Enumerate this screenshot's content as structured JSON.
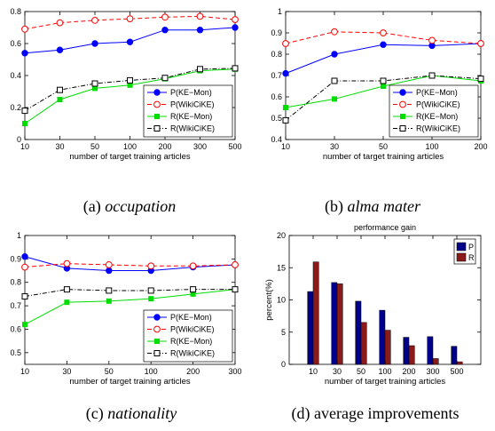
{
  "captions": [
    {
      "label": "(a)",
      "name": "occupation",
      "italic": true
    },
    {
      "label": "(b)",
      "name": "alma mater",
      "italic": true
    },
    {
      "label": "(c)",
      "name": "nationality",
      "italic": true
    },
    {
      "label": "(d)",
      "name": "average improvements",
      "italic": false
    }
  ],
  "colors": {
    "ke_mon_p": "#0000ff",
    "wikicike_p": "#ff0000",
    "ke_mon_r": "#00dd00",
    "wikicike_r": "#000000",
    "bar_p": "#00008b",
    "bar_r": "#8b1a1a"
  },
  "chart_data": [
    {
      "type": "line",
      "xlabel": "number of target training articles",
      "x": [
        "10",
        "30",
        "50",
        "100",
        "200",
        "300",
        "500"
      ],
      "ylim": [
        0,
        0.8
      ],
      "yticks": [
        "0",
        "0.2",
        "0.4",
        "0.6",
        "0.8"
      ],
      "legend": "bottom-right",
      "series": [
        {
          "name": "P(KE−Mon)",
          "values": [
            0.54,
            0.56,
            0.6,
            0.61,
            0.685,
            0.685,
            0.7
          ]
        },
        {
          "name": "P(WikiCiKE)",
          "values": [
            0.69,
            0.73,
            0.745,
            0.755,
            0.765,
            0.77,
            0.75
          ]
        },
        {
          "name": "R(KE−Mon)",
          "values": [
            0.1,
            0.25,
            0.32,
            0.34,
            0.38,
            0.43,
            0.44
          ]
        },
        {
          "name": "R(WikiCiKE)",
          "values": [
            0.18,
            0.31,
            0.35,
            0.37,
            0.385,
            0.44,
            0.445
          ]
        }
      ]
    },
    {
      "type": "line",
      "xlabel": "number of target training articles",
      "x": [
        "10",
        "30",
        "50",
        "100",
        "200"
      ],
      "ylim": [
        0.4,
        1
      ],
      "yticks": [
        "0.4",
        "0.5",
        "0.6",
        "0.7",
        "0.8",
        "0.9",
        "1"
      ],
      "legend": "bottom-right",
      "series": [
        {
          "name": "P(KE−Mon)",
          "values": [
            0.71,
            0.8,
            0.845,
            0.84,
            0.85
          ]
        },
        {
          "name": "P(WikiCiKE)",
          "values": [
            0.85,
            0.905,
            0.9,
            0.865,
            0.85
          ]
        },
        {
          "name": "R(KE−Mon)",
          "values": [
            0.55,
            0.59,
            0.65,
            0.7,
            0.675
          ]
        },
        {
          "name": "R(WikiCiKE)",
          "values": [
            0.49,
            0.675,
            0.675,
            0.7,
            0.685
          ]
        }
      ]
    },
    {
      "type": "line",
      "xlabel": "number of target training articles",
      "x": [
        "10",
        "30",
        "50",
        "100",
        "200",
        "300"
      ],
      "ylim": [
        0.45,
        1
      ],
      "yticks": [
        "0.5",
        "0.6",
        "0.7",
        "0.8",
        "0.9",
        "1"
      ],
      "legend": "bottom-right",
      "series": [
        {
          "name": "P(KE−Mon)",
          "values": [
            0.91,
            0.86,
            0.85,
            0.85,
            0.865,
            0.875
          ]
        },
        {
          "name": "P(WikiCiKE)",
          "values": [
            0.865,
            0.88,
            0.875,
            0.87,
            0.87,
            0.875
          ]
        },
        {
          "name": "R(KE−Mon)",
          "values": [
            0.62,
            0.715,
            0.72,
            0.73,
            0.75,
            0.77
          ]
        },
        {
          "name": "R(WikiCiKE)",
          "values": [
            0.74,
            0.77,
            0.765,
            0.765,
            0.77,
            0.77
          ]
        }
      ]
    },
    {
      "type": "bar",
      "title": "performance gain",
      "xlabel": "number of target training articles",
      "ylabel": "percent(%)",
      "categories": [
        "10",
        "30",
        "50",
        "100",
        "200",
        "300",
        "500"
      ],
      "ylim": [
        0,
        20
      ],
      "yticks": [
        "0",
        "5",
        "10",
        "15",
        "20"
      ],
      "legend": "top-right",
      "series": [
        {
          "name": "P",
          "values": [
            11.3,
            12.7,
            9.8,
            8.4,
            4.2,
            4.3,
            2.8
          ]
        },
        {
          "name": "R",
          "values": [
            15.9,
            12.5,
            6.5,
            5.3,
            2.9,
            0.9,
            0.4
          ]
        }
      ]
    }
  ]
}
